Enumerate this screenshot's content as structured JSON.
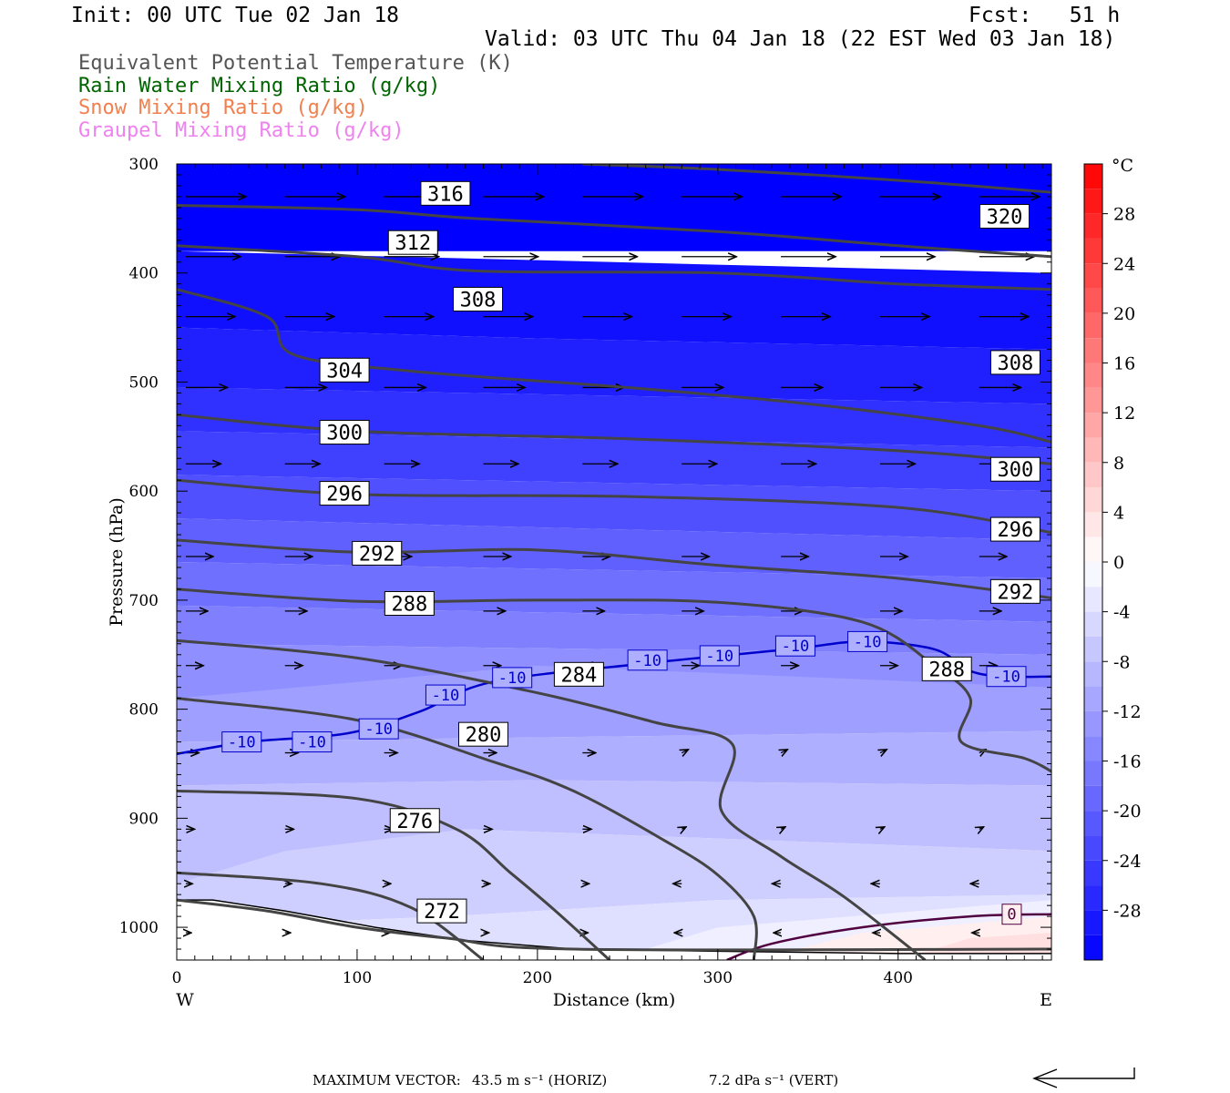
{
  "header": {
    "init": "Init: 00 UTC Tue 02 Jan 18",
    "fcst": "Fcst:   51 h",
    "valid": "Valid: 03 UTC Thu 04 Jan 18 (22 EST Wed 03 Jan 18)"
  },
  "legend": [
    {
      "label": "Equivalent Potential Temperature (K)",
      "color": "#555555"
    },
    {
      "label": "Rain Water Mixing Ratio (g/kg)",
      "color": "#006400"
    },
    {
      "label": "Snow Mixing Ratio (g/kg)",
      "color": "#f08050"
    },
    {
      "label": "Graupel Mixing Ratio (g/kg)",
      "color": "#ee82ee"
    }
  ],
  "chart_data": {
    "type": "cross-section",
    "xlabel": "Distance (km)",
    "ylabel": "Pressure (hPa)",
    "xlim": [
      0,
      485
    ],
    "ylim": [
      1030,
      300
    ],
    "x_ticks": [
      "0",
      "100",
      "200",
      "300",
      "400"
    ],
    "x_tick_values": [
      0,
      100,
      200,
      300,
      400
    ],
    "y_ticks": [
      "300",
      "400",
      "500",
      "600",
      "700",
      "800",
      "900",
      "1000"
    ],
    "y_tick_values": [
      300,
      400,
      500,
      600,
      700,
      800,
      900,
      1000
    ],
    "west_label": "W",
    "east_label": "E",
    "colorbar": {
      "unit": "°C",
      "labels": [
        "28",
        "24",
        "20",
        "16",
        "12",
        "8",
        "4",
        "0",
        "-4",
        "-8",
        "-12",
        "-16",
        "-20",
        "-24",
        "-28"
      ],
      "label_values": [
        28,
        24,
        20,
        16,
        12,
        8,
        4,
        0,
        -4,
        -8,
        -12,
        -16,
        -20,
        -24,
        -28
      ],
      "range": [
        -32,
        32
      ],
      "step": 2
    },
    "theta_e_contours": [
      {
        "value": 320,
        "label": "320",
        "label_at": [
          459,
          348
        ],
        "points": [
          [
            225,
            300
          ],
          [
            300,
            305
          ],
          [
            400,
            315
          ],
          [
            485,
            326
          ]
        ]
      },
      {
        "value": 316,
        "label": "316",
        "label_at": [
          149,
          327
        ],
        "points": [
          [
            0,
            338
          ],
          [
            100,
            342
          ],
          [
            165,
            350
          ],
          [
            300,
            362
          ],
          [
            400,
            375
          ],
          [
            485,
            385
          ]
        ]
      },
      {
        "value": 312,
        "label": "312",
        "label_at": [
          131,
          372
        ],
        "points": [
          [
            0,
            375
          ],
          [
            100,
            385
          ],
          [
            165,
            398
          ],
          [
            300,
            400
          ],
          [
            400,
            410
          ],
          [
            485,
            415
          ]
        ]
      },
      {
        "value": 308,
        "label": "308",
        "label_at": [
          167,
          424
        ],
        "points": [
          [
            0,
            415
          ],
          [
            50,
            440
          ],
          [
            65,
            475
          ],
          [
            130,
            490
          ],
          [
            250,
            505
          ],
          [
            350,
            520
          ],
          [
            445,
            540
          ],
          [
            485,
            555
          ]
        ],
        "label2": "308",
        "label2_at": [
          465,
          482
        ]
      },
      {
        "value": 304,
        "label": "304",
        "label_at": [
          93,
          489
        ],
        "points": [
          [
            0,
            530
          ],
          [
            100,
            545
          ],
          [
            250,
            552
          ],
          [
            400,
            563
          ],
          [
            485,
            575
          ]
        ]
      },
      {
        "value": 300,
        "label": "300",
        "label_at": [
          93,
          546
        ],
        "points": [
          [
            0,
            590
          ],
          [
            100,
            603
          ],
          [
            250,
            605
          ],
          [
            400,
            615
          ],
          [
            485,
            638
          ]
        ],
        "label2": "300",
        "label2_at": [
          465,
          580
        ]
      },
      {
        "value": 296,
        "label": "296",
        "label_at": [
          93,
          602
        ],
        "points": [
          [
            0,
            645
          ],
          [
            100,
            656
          ],
          [
            200,
            654
          ],
          [
            300,
            668
          ],
          [
            400,
            680
          ],
          [
            485,
            698
          ]
        ],
        "label2": "296",
        "label2_at": [
          465,
          635
        ]
      },
      {
        "value": 292,
        "label": "292",
        "label_at": [
          111,
          657
        ],
        "points": [
          [
            0,
            690
          ],
          [
            100,
            701
          ],
          [
            200,
            700
          ],
          [
            300,
            702
          ],
          [
            380,
            720
          ],
          [
            420,
            760
          ],
          [
            440,
            790
          ],
          [
            435,
            830
          ],
          [
            470,
            845
          ],
          [
            485,
            857
          ]
        ],
        "label2": "292",
        "label2_at": [
          465,
          692
        ]
      },
      {
        "value": 288,
        "label": "288",
        "label_at": [
          129,
          703
        ],
        "points": [
          [
            0,
            737
          ],
          [
            100,
            753
          ],
          [
            200,
            785
          ],
          [
            265,
            812
          ],
          [
            308,
            832
          ],
          [
            302,
            893
          ],
          [
            335,
            935
          ],
          [
            370,
            972
          ],
          [
            415,
            1030
          ]
        ],
        "label2": "288",
        "label2_at": [
          427,
          763
        ]
      },
      {
        "value": 284,
        "label": "284",
        "label_at": [
          223,
          768
        ],
        "points": [
          [
            0,
            790
          ],
          [
            100,
            810
          ],
          [
            175,
            848
          ],
          [
            220,
            875
          ],
          [
            270,
            920
          ],
          [
            300,
            952
          ],
          [
            320,
            990
          ],
          [
            320,
            1030
          ]
        ]
      },
      {
        "value": 280,
        "label": "280",
        "label_at": [
          170,
          823
        ],
        "points": [
          [
            0,
            875
          ],
          [
            100,
            882
          ],
          [
            155,
            910
          ],
          [
            185,
            950
          ],
          [
            210,
            985
          ],
          [
            240,
            1030
          ]
        ]
      },
      {
        "value": 276,
        "label": "276",
        "label_at": [
          132,
          902
        ],
        "points": [
          [
            0,
            950
          ],
          [
            80,
            960
          ],
          [
            130,
            982
          ],
          [
            170,
            1030
          ]
        ]
      },
      {
        "value": 272,
        "label": "272",
        "label_at": [
          147,
          985
        ],
        "points": [
          [
            0,
            975
          ],
          [
            50,
            985
          ],
          [
            100,
            1000
          ],
          [
            150,
            1010
          ],
          [
            220,
            1020
          ],
          [
            485,
            1020
          ]
        ]
      }
    ],
    "temperature_contours": [
      {
        "value": -10,
        "color": "#0000cd",
        "labels_at": [
          [
            36,
            830
          ],
          [
            75,
            830
          ],
          [
            112,
            818
          ],
          [
            149,
            787
          ],
          [
            186,
            771
          ],
          [
            261,
            755
          ],
          [
            301,
            751
          ],
          [
            343,
            742
          ],
          [
            383,
            738
          ],
          [
            460,
            770
          ]
        ],
        "points": [
          [
            0,
            841
          ],
          [
            40,
            830
          ],
          [
            95,
            822
          ],
          [
            135,
            802
          ],
          [
            175,
            775
          ],
          [
            260,
            758
          ],
          [
            340,
            745
          ],
          [
            380,
            738
          ],
          [
            420,
            745
          ],
          [
            440,
            765
          ],
          [
            460,
            770
          ],
          [
            485,
            770
          ]
        ]
      },
      {
        "value": 0,
        "color": "#500040",
        "label": "0",
        "labels_at": [
          [
            463,
            988
          ]
        ],
        "points": [
          [
            305,
            1030
          ],
          [
            330,
            1015
          ],
          [
            380,
            1000
          ],
          [
            440,
            990
          ],
          [
            485,
            988
          ]
        ]
      }
    ],
    "wind_vectors_note": "arrows show horizontal/vertical circulation; maximum vector given in footer"
  },
  "footer": {
    "max_vector": "MAXIMUM VECTOR:",
    "horiz": "43.5 m s⁻¹ (HORIZ)",
    "vert": "7.2 dPa s⁻¹ (VERT)"
  }
}
